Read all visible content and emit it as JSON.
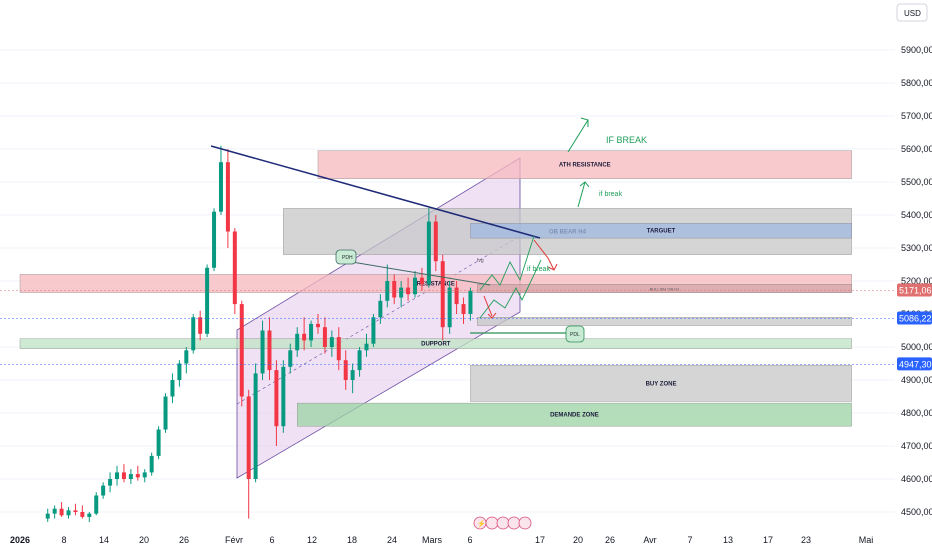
{
  "currency_button": "USD",
  "chart_data": {
    "type": "candlestick",
    "y_axis": {
      "ticks": [
        "4500,00",
        "4600,00",
        "4700,00",
        "4800,00",
        "4900,00",
        "5000,00",
        "5100,00",
        "5200,00",
        "5300,00",
        "5400,00",
        "5500,00",
        "5600,00",
        "5700,00",
        "5800,00",
        "5900,00"
      ],
      "tick_values": [
        4500,
        4600,
        4700,
        4800,
        4900,
        5000,
        5100,
        5200,
        5300,
        5400,
        5500,
        5600,
        5700,
        5800,
        5900
      ],
      "range": [
        4475,
        6000
      ]
    },
    "x_axis": {
      "ticks": [
        "2026",
        "8",
        "14",
        "20",
        "26",
        "Févr",
        "6",
        "12",
        "18",
        "24",
        "Mars",
        "6",
        "17",
        "20",
        "26",
        "Avr",
        "7",
        "13",
        "17",
        "23",
        "Mai"
      ],
      "range": [
        "2026-01-01",
        "2026-05-01"
      ]
    },
    "price_badges": [
      {
        "label": "5171,06",
        "value": 5171.06,
        "color": "#e0706f"
      },
      {
        "label": "5086,22",
        "value": 5086.22,
        "color": "#2962ff"
      },
      {
        "label": "4947,30",
        "value": 4947.3,
        "color": "#2962ff"
      }
    ],
    "zones": [
      {
        "label": "ATH RESISTANCE",
        "y": [
          5510,
          5595
        ],
        "x": [
          "2026-02-13",
          "2026-05-01"
        ],
        "color": "#f7b8bc"
      },
      {
        "label": "OB BEAR H4",
        "y": [
          5280,
          5420
        ],
        "x": [
          "2026-02-08",
          "2026-05-01"
        ],
        "color": "#c7c7c7"
      },
      {
        "label": "TARGUET",
        "y": [
          5330,
          5375
        ],
        "x": [
          "2026-03-07",
          "2026-05-01"
        ],
        "color": "#9fb8e0"
      },
      {
        "label": "RESISTANCE",
        "y": [
          5165,
          5220
        ],
        "x": [
          "2026-01-01",
          "2026-05-01"
        ],
        "color": "#f7b8bc"
      },
      {
        "label": "BULLISH OB H1",
        "y": [
          5165,
          5190
        ],
        "x": [
          "2026-03-08",
          "2026-05-01"
        ],
        "color": "#d4a4a8"
      },
      {
        "label": "",
        "y": [
          5065,
          5090
        ],
        "x": [
          "2026-03-08",
          "2026-05-01"
        ],
        "color": "#c7c7c7"
      },
      {
        "label": "DUPPORT",
        "y": [
          4995,
          5025
        ],
        "x": [
          "2026-01-01",
          "2026-05-01"
        ],
        "color": "#bfe3c3"
      },
      {
        "label": "BUY ZONE",
        "y": [
          4835,
          4945
        ],
        "x": [
          "2026-03-07",
          "2026-05-01"
        ],
        "color": "#c7c7c7"
      },
      {
        "label": "DEMANDE ZONE",
        "y": [
          4760,
          4830
        ],
        "x": [
          "2026-02-10",
          "2026-05-01"
        ],
        "color": "#9bd3a3"
      }
    ],
    "annotations": [
      "IF BREAK",
      "if break",
      "if break",
      "PDH",
      "PDL",
      "fvg"
    ],
    "candles": [
      {
        "d": "2026-01-05",
        "o": 4480,
        "h": 4510,
        "l": 4470,
        "c": 4495
      },
      {
        "d": "2026-01-06",
        "o": 4495,
        "h": 4520,
        "l": 4480,
        "c": 4510
      },
      {
        "d": "2026-01-07",
        "o": 4510,
        "h": 4530,
        "l": 4485,
        "c": 4490
      },
      {
        "d": "2026-01-08",
        "o": 4490,
        "h": 4515,
        "l": 4480,
        "c": 4505
      },
      {
        "d": "2026-01-09",
        "o": 4505,
        "h": 4525,
        "l": 4490,
        "c": 4500
      },
      {
        "d": "2026-01-10",
        "o": 4500,
        "h": 4520,
        "l": 4480,
        "c": 4485
      },
      {
        "d": "2026-01-11",
        "o": 4485,
        "h": 4500,
        "l": 4470,
        "c": 4495
      },
      {
        "d": "2026-01-12",
        "o": 4495,
        "h": 4560,
        "l": 4490,
        "c": 4550
      },
      {
        "d": "2026-01-13",
        "o": 4550,
        "h": 4590,
        "l": 4540,
        "c": 4580
      },
      {
        "d": "2026-01-14",
        "o": 4580,
        "h": 4620,
        "l": 4560,
        "c": 4600
      },
      {
        "d": "2026-01-15",
        "o": 4600,
        "h": 4640,
        "l": 4580,
        "c": 4620
      },
      {
        "d": "2026-01-16",
        "o": 4620,
        "h": 4645,
        "l": 4590,
        "c": 4600
      },
      {
        "d": "2026-01-17",
        "o": 4600,
        "h": 4630,
        "l": 4585,
        "c": 4615
      },
      {
        "d": "2026-01-18",
        "o": 4615,
        "h": 4640,
        "l": 4595,
        "c": 4605
      },
      {
        "d": "2026-01-19",
        "o": 4605,
        "h": 4630,
        "l": 4590,
        "c": 4620
      },
      {
        "d": "2026-01-20",
        "o": 4620,
        "h": 4680,
        "l": 4610,
        "c": 4670
      },
      {
        "d": "2026-01-21",
        "o": 4670,
        "h": 4760,
        "l": 4660,
        "c": 4750
      },
      {
        "d": "2026-01-22",
        "o": 4750,
        "h": 4860,
        "l": 4740,
        "c": 4850
      },
      {
        "d": "2026-01-23",
        "o": 4850,
        "h": 4920,
        "l": 4830,
        "c": 4900
      },
      {
        "d": "2026-01-24",
        "o": 4900,
        "h": 4960,
        "l": 4880,
        "c": 4950
      },
      {
        "d": "2026-01-25",
        "o": 4950,
        "h": 5000,
        "l": 4920,
        "c": 4990
      },
      {
        "d": "2026-01-26",
        "o": 4990,
        "h": 5100,
        "l": 4980,
        "c": 5090
      },
      {
        "d": "2026-01-27",
        "o": 5090,
        "h": 5110,
        "l": 5020,
        "c": 5040
      },
      {
        "d": "2026-01-28",
        "o": 5040,
        "h": 5250,
        "l": 5030,
        "c": 5240
      },
      {
        "d": "2026-01-29",
        "o": 5240,
        "h": 5420,
        "l": 5230,
        "c": 5410
      },
      {
        "d": "2026-01-30",
        "o": 5410,
        "h": 5610,
        "l": 5400,
        "c": 5560
      },
      {
        "d": "2026-01-31",
        "o": 5560,
        "h": 5600,
        "l": 5300,
        "c": 5350
      },
      {
        "d": "2026-02-01",
        "o": 5350,
        "h": 5360,
        "l": 5100,
        "c": 5130
      },
      {
        "d": "2026-02-02",
        "o": 5130,
        "h": 5140,
        "l": 4820,
        "c": 4850
      },
      {
        "d": "2026-02-03",
        "o": 4850,
        "h": 4870,
        "l": 4480,
        "c": 4600
      },
      {
        "d": "2026-02-04",
        "o": 4600,
        "h": 4950,
        "l": 4590,
        "c": 4920
      },
      {
        "d": "2026-02-05",
        "o": 4920,
        "h": 5080,
        "l": 4900,
        "c": 5050
      },
      {
        "d": "2026-02-06",
        "o": 5050,
        "h": 5090,
        "l": 4900,
        "c": 4930
      },
      {
        "d": "2026-02-07",
        "o": 4930,
        "h": 4960,
        "l": 4700,
        "c": 4760
      },
      {
        "d": "2026-02-08",
        "o": 4760,
        "h": 4960,
        "l": 4740,
        "c": 4940
      },
      {
        "d": "2026-02-09",
        "o": 4940,
        "h": 5010,
        "l": 4920,
        "c": 4990
      },
      {
        "d": "2026-02-10",
        "o": 4990,
        "h": 5060,
        "l": 4970,
        "c": 5040
      },
      {
        "d": "2026-02-11",
        "o": 5040,
        "h": 5090,
        "l": 4990,
        "c": 5020
      },
      {
        "d": "2026-02-12",
        "o": 5020,
        "h": 5080,
        "l": 5000,
        "c": 5070
      },
      {
        "d": "2026-02-13",
        "o": 5070,
        "h": 5100,
        "l": 5040,
        "c": 5060
      },
      {
        "d": "2026-02-14",
        "o": 5060,
        "h": 5090,
        "l": 4980,
        "c": 5000
      },
      {
        "d": "2026-02-15",
        "o": 5000,
        "h": 5050,
        "l": 4970,
        "c": 5030
      },
      {
        "d": "2026-02-16",
        "o": 5030,
        "h": 5060,
        "l": 4930,
        "c": 4960
      },
      {
        "d": "2026-02-17",
        "o": 4960,
        "h": 4990,
        "l": 4870,
        "c": 4900
      },
      {
        "d": "2026-02-18",
        "o": 4900,
        "h": 4950,
        "l": 4860,
        "c": 4930
      },
      {
        "d": "2026-02-19",
        "o": 4930,
        "h": 5000,
        "l": 4910,
        "c": 4990
      },
      {
        "d": "2026-02-20",
        "o": 4990,
        "h": 5040,
        "l": 4970,
        "c": 5010
      },
      {
        "d": "2026-02-21",
        "o": 5010,
        "h": 5100,
        "l": 5000,
        "c": 5090
      },
      {
        "d": "2026-02-22",
        "o": 5090,
        "h": 5160,
        "l": 5070,
        "c": 5140
      },
      {
        "d": "2026-02-23",
        "o": 5140,
        "h": 5250,
        "l": 5120,
        "c": 5200
      },
      {
        "d": "2026-02-24",
        "o": 5200,
        "h": 5220,
        "l": 5130,
        "c": 5150
      },
      {
        "d": "2026-02-25",
        "o": 5150,
        "h": 5200,
        "l": 5120,
        "c": 5180
      },
      {
        "d": "2026-02-26",
        "o": 5180,
        "h": 5210,
        "l": 5140,
        "c": 5160
      },
      {
        "d": "2026-02-27",
        "o": 5160,
        "h": 5230,
        "l": 5150,
        "c": 5210
      },
      {
        "d": "2026-02-28",
        "o": 5210,
        "h": 5240,
        "l": 5170,
        "c": 5190
      },
      {
        "d": "2026-03-01",
        "o": 5190,
        "h": 5420,
        "l": 5180,
        "c": 5380
      },
      {
        "d": "2026-03-02",
        "o": 5380,
        "h": 5400,
        "l": 5230,
        "c": 5260
      },
      {
        "d": "2026-03-03",
        "o": 5260,
        "h": 5280,
        "l": 5020,
        "c": 5060
      },
      {
        "d": "2026-03-04",
        "o": 5060,
        "h": 5200,
        "l": 5040,
        "c": 5180
      },
      {
        "d": "2026-03-05",
        "o": 5180,
        "h": 5200,
        "l": 5100,
        "c": 5130
      },
      {
        "d": "2026-03-06",
        "o": 5130,
        "h": 5150,
        "l": 5070,
        "c": 5100
      },
      {
        "d": "2026-03-07",
        "o": 5100,
        "h": 5180,
        "l": 5080,
        "c": 5170
      }
    ]
  }
}
